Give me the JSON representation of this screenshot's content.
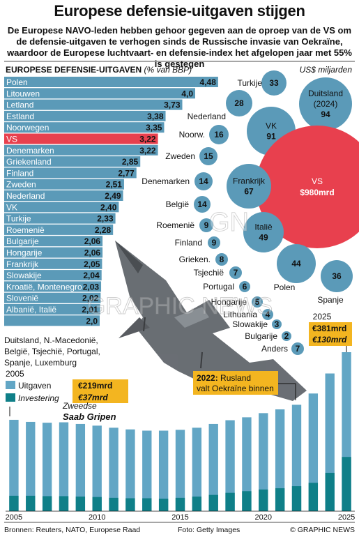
{
  "title": "Europese defensie-uitgaven stijgen",
  "subtitle": "De Europese NAVO-leden hebben gehoor gegeven aan de oproep van de VS om de defensie-uitgaven te verhogen sinds de Russische invasie van Oekraïne, waardoor de Europese luchtvaart- en defensie-index het afgelopen jaar met 55% is gestegen",
  "colors": {
    "bar": "#5b9ab8",
    "highlight": "#e8404e",
    "bubble": "#5b9ab8",
    "investment": "#0f7f88",
    "spend": "#62a6c5",
    "callout": "#f3b520"
  },
  "chart_data": [
    {
      "type": "bar",
      "title": "EUROPESE DEFENSIE-UITGAVEN",
      "unit": "(% van BBP)",
      "categories": [
        "Polen",
        "Litouwen",
        "Letland",
        "Estland",
        "Noorwegen",
        "VS",
        "Denemarken",
        "Griekenland",
        "Finland",
        "Zweden",
        "Nederland",
        "VK",
        "Turkije",
        "Roemenië",
        "Bulgarije",
        "Hongarije",
        "Frankrijk",
        "Slowakije",
        "Kroatië, Montenegro",
        "Slovenië",
        "Albanië, Italië",
        ""
      ],
      "values": [
        4.48,
        4.0,
        3.73,
        3.38,
        3.35,
        3.22,
        3.22,
        2.85,
        2.77,
        2.51,
        2.49,
        2.4,
        2.33,
        2.28,
        2.06,
        2.06,
        2.05,
        2.04,
        2.03,
        2.02,
        2.01,
        2.0
      ],
      "value_labels": [
        "4,48",
        "4,0",
        "3,73",
        "3,38",
        "3,35",
        "3,22",
        "3,22",
        "2,85",
        "2,77",
        "2,51",
        "2,49",
        "2,40",
        "2,33",
        "2,28",
        "2,06",
        "2,06",
        "2,05",
        "2,04",
        "2,03",
        "2,02",
        "2,01",
        "2,0"
      ],
      "highlight": "VS",
      "note": "Duitsland, N.-Macedonië, België, Tsjechië, Portugal, Spanje, Luxemburg"
    },
    {
      "type": "bubble",
      "unit": "US$ miljarden",
      "items": [
        {
          "name": "Turkije",
          "value": "33"
        },
        {
          "name": "Duitsland (2024)",
          "value": "94"
        },
        {
          "name": "",
          "value": "28"
        },
        {
          "name": "Nederland",
          "value": ""
        },
        {
          "name": "VK",
          "value": "91"
        },
        {
          "name": "Noorw.",
          "value": "16"
        },
        {
          "name": "VS",
          "value": "$980mrd"
        },
        {
          "name": "Zweden",
          "value": "15"
        },
        {
          "name": "Frankrijk",
          "value": "67"
        },
        {
          "name": "Denemarken",
          "value": "14"
        },
        {
          "name": "België",
          "value": "14"
        },
        {
          "name": "Italië",
          "value": "49"
        },
        {
          "name": "Roemenië",
          "value": "9"
        },
        {
          "name": "Finland",
          "value": "9"
        },
        {
          "name": "Grieken.",
          "value": "8"
        },
        {
          "name": "",
          "value": "44"
        },
        {
          "name": "Tsjechië",
          "value": "7"
        },
        {
          "name": "",
          "value": "36"
        },
        {
          "name": "Portugal",
          "value": "6"
        },
        {
          "name": "Polen",
          "value": ""
        },
        {
          "name": "Hongarije",
          "value": "5"
        },
        {
          "name": "Spanje",
          "value": ""
        },
        {
          "name": "Lithuania",
          "value": "4"
        },
        {
          "name": "Slowakije",
          "value": "3"
        },
        {
          "name": "Bulgarije",
          "value": "2"
        },
        {
          "name": "Anders",
          "value": "7"
        }
      ]
    },
    {
      "type": "bar",
      "title": "",
      "x": [
        2005,
        2006,
        2007,
        2008,
        2009,
        2010,
        2011,
        2012,
        2013,
        2014,
        2015,
        2016,
        2017,
        2018,
        2019,
        2020,
        2021,
        2022,
        2023,
        2024,
        2025
      ],
      "x_ticks": [
        "2005",
        "2010",
        "2015",
        "2020",
        "2025"
      ],
      "series": [
        {
          "name": "Uitgaven",
          "values": [
            219,
            214,
            212,
            213,
            209,
            205,
            200,
            196,
            193,
            193,
            195,
            200,
            209,
            218,
            225,
            235,
            244,
            255,
            282,
            330,
            381
          ]
        },
        {
          "name": "Investering",
          "values": [
            37,
            37,
            36,
            36,
            35,
            34,
            32,
            31,
            31,
            30,
            32,
            35,
            39,
            44,
            48,
            52,
            55,
            60,
            68,
            92,
            130
          ]
        }
      ],
      "ylim": [
        0,
        381
      ]
    }
  ],
  "legend": {
    "year": "2005",
    "spend_label": "Uitgaven",
    "spend_value": "€219mrd",
    "invest_label": "Investering",
    "invest_value": "€37mrd"
  },
  "callout_2022": {
    "year": "2022:",
    "text1": " Rusland",
    "text2": "valt Oekraïne binnen"
  },
  "callout_2025": {
    "year": "2025",
    "spend_value": "€381mrd",
    "invest_value": "€130mrd"
  },
  "plane_caption": {
    "line1": "Zweedse",
    "line2": "Saab Gripen"
  },
  "watermark": "GRAPHIC NEWS",
  "footer": {
    "sources": "Bronnen: Reuters, NATO, Europese Raad",
    "photo": "Foto: Getty Images",
    "copyright": "© GRAPHIC NEWS"
  }
}
